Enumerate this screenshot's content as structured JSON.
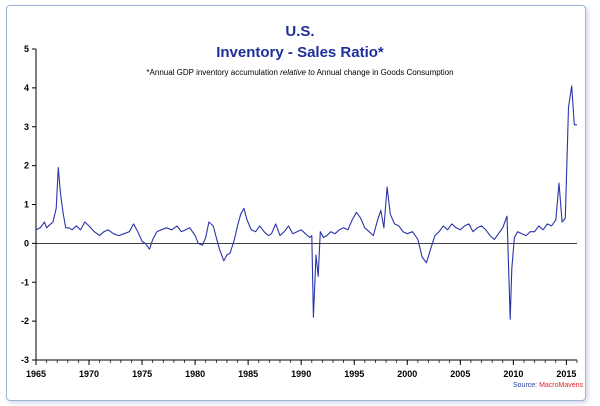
{
  "title_line1": "U.S.",
  "title_line2": "Inventory - Sales Ratio*",
  "subtitle": {
    "prefix": "*Annual GDP inventory accumulation ",
    "emphasis": "relative to",
    "suffix": "  Annual change in Goods Consumption"
  },
  "source": {
    "label": "Source: ",
    "brand": "MacroMavens"
  },
  "colors": {
    "line": "#2a35a8",
    "title": "#1f2f9a",
    "source_brand": "#e0242c"
  },
  "chart_data": {
    "type": "line",
    "title": "Inventory - Sales Ratio*",
    "xlabel": "",
    "ylabel": "",
    "xlim": [
      1965,
      2016
    ],
    "ylim": [
      -3,
      5
    ],
    "yticks": [
      5,
      4,
      3,
      2,
      1,
      0,
      -1,
      -2,
      -3
    ],
    "xticks": [
      1965,
      1970,
      1975,
      1980,
      1985,
      1990,
      1995,
      2000,
      2005,
      2010,
      2015
    ],
    "grid": false,
    "series": [
      {
        "name": "Inventory - Sales Ratio",
        "x": [
          1965,
          1965.4,
          1965.8,
          1966.0,
          1966.3,
          1966.6,
          1966.9,
          1967.1,
          1967.3,
          1967.55,
          1967.8,
          1968.1,
          1968.4,
          1968.8,
          1969.2,
          1969.6,
          1970.0,
          1970.5,
          1971.0,
          1971.4,
          1971.8,
          1972.3,
          1972.8,
          1973.3,
          1973.8,
          1974.2,
          1974.6,
          1975.0,
          1975.3,
          1975.7,
          1976.0,
          1976.4,
          1976.8,
          1977.3,
          1977.8,
          1978.3,
          1978.7,
          1979.1,
          1979.5,
          1980.0,
          1980.3,
          1980.7,
          1981.0,
          1981.3,
          1981.7,
          1982.0,
          1982.3,
          1982.7,
          1983.0,
          1983.3,
          1983.7,
          1984.0,
          1984.3,
          1984.6,
          1984.9,
          1985.3,
          1985.7,
          1986.1,
          1986.5,
          1986.9,
          1987.2,
          1987.6,
          1988.0,
          1988.4,
          1988.8,
          1989.2,
          1989.6,
          1990.0,
          1990.4,
          1990.8,
          1991.0,
          1991.15,
          1991.4,
          1991.6,
          1991.8,
          1992.1,
          1992.4,
          1992.8,
          1993.2,
          1993.6,
          1994.0,
          1994.4,
          1994.8,
          1995.2,
          1995.6,
          1996.0,
          1996.4,
          1996.8,
          1997.2,
          1997.5,
          1997.8,
          1998.1,
          1998.4,
          1998.8,
          1999.2,
          1999.6,
          2000.0,
          2000.5,
          2001.0,
          2001.4,
          2001.8,
          2002.2,
          2002.6,
          2003.0,
          2003.4,
          2003.8,
          2004.2,
          2004.6,
          2005.0,
          2005.4,
          2005.8,
          2006.2,
          2006.6,
          2007.0,
          2007.4,
          2007.8,
          2008.2,
          2008.6,
          2009.0,
          2009.4,
          2009.7,
          2009.85,
          2010.1,
          2010.4,
          2010.8,
          2011.2,
          2011.6,
          2012.0,
          2012.4,
          2012.8,
          2013.2,
          2013.6,
          2014.0,
          2014.3,
          2014.6,
          2014.9,
          2015.2,
          2015.5,
          2015.75,
          2016.0
        ],
        "values": [
          0.35,
          0.4,
          0.55,
          0.4,
          0.48,
          0.55,
          0.9,
          1.95,
          1.3,
          0.8,
          0.4,
          0.4,
          0.35,
          0.45,
          0.35,
          0.55,
          0.45,
          0.3,
          0.2,
          0.3,
          0.35,
          0.25,
          0.2,
          0.25,
          0.3,
          0.5,
          0.3,
          0.05,
          0.0,
          -0.15,
          0.1,
          0.3,
          0.35,
          0.4,
          0.35,
          0.45,
          0.3,
          0.35,
          0.4,
          0.2,
          0.0,
          -0.05,
          0.15,
          0.55,
          0.45,
          0.15,
          -0.15,
          -0.45,
          -0.3,
          -0.25,
          0.1,
          0.45,
          0.75,
          0.9,
          0.6,
          0.35,
          0.3,
          0.45,
          0.3,
          0.2,
          0.25,
          0.5,
          0.2,
          0.3,
          0.45,
          0.25,
          0.3,
          0.35,
          0.25,
          0.15,
          0.2,
          -1.9,
          -0.3,
          -0.85,
          0.3,
          0.15,
          0.2,
          0.3,
          0.25,
          0.35,
          0.4,
          0.35,
          0.6,
          0.8,
          0.65,
          0.4,
          0.3,
          0.2,
          0.6,
          0.85,
          0.4,
          1.45,
          0.75,
          0.5,
          0.45,
          0.3,
          0.25,
          0.3,
          0.1,
          -0.35,
          -0.5,
          -0.15,
          0.2,
          0.3,
          0.45,
          0.35,
          0.5,
          0.4,
          0.35,
          0.45,
          0.5,
          0.3,
          0.4,
          0.45,
          0.35,
          0.2,
          0.1,
          0.25,
          0.4,
          0.7,
          -1.95,
          -0.65,
          0.15,
          0.3,
          0.25,
          0.2,
          0.3,
          0.3,
          0.45,
          0.35,
          0.5,
          0.45,
          0.6,
          1.55,
          0.55,
          0.65,
          3.5,
          4.05,
          3.05,
          3.05
        ]
      }
    ]
  }
}
